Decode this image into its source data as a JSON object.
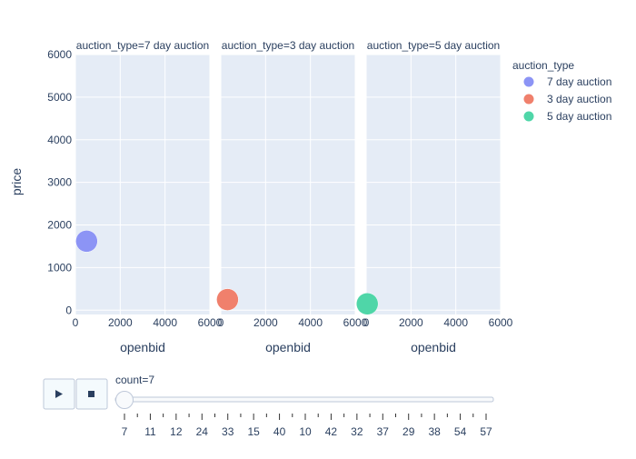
{
  "chart_data": {
    "type": "scatter",
    "y_label": "price",
    "x_label": "openbid",
    "legend": {
      "title": "auction_type",
      "placement": "top-right",
      "items": [
        {
          "name": "7 day auction",
          "color": "#8c94f5"
        },
        {
          "name": "3 day auction",
          "color": "#f0806c"
        },
        {
          "name": "5 day auction",
          "color": "#4fd6a8"
        }
      ]
    },
    "grid": true,
    "x_range": [
      0,
      6000
    ],
    "y_range": [
      -100,
      6000
    ],
    "x_ticks": [
      "0",
      "2000",
      "4000",
      "6000"
    ],
    "y_ticks": [
      "0",
      "1000",
      "2000",
      "3000",
      "4000",
      "5000",
      "6000"
    ],
    "facets": [
      {
        "title": "auction_type=7 day auction",
        "points": [
          {
            "x": 500,
            "y": 1620,
            "color": "#8c94f5"
          }
        ]
      },
      {
        "title": "auction_type=3 day auction",
        "points": [
          {
            "x": 300,
            "y": 250,
            "color": "#f0806c"
          }
        ]
      },
      {
        "title": "auction_type=5 day auction",
        "points": [
          {
            "x": 50,
            "y": 150,
            "color": "#4fd6a8"
          }
        ]
      }
    ]
  },
  "controls": {
    "play_icon": "play-icon",
    "stop_icon": "stop-icon",
    "slider_label": "count=7",
    "slider_steps": [
      "7",
      "11",
      "12",
      "24",
      "33",
      "15",
      "40",
      "10",
      "42",
      "32",
      "37",
      "29",
      "38",
      "54",
      "57"
    ]
  }
}
